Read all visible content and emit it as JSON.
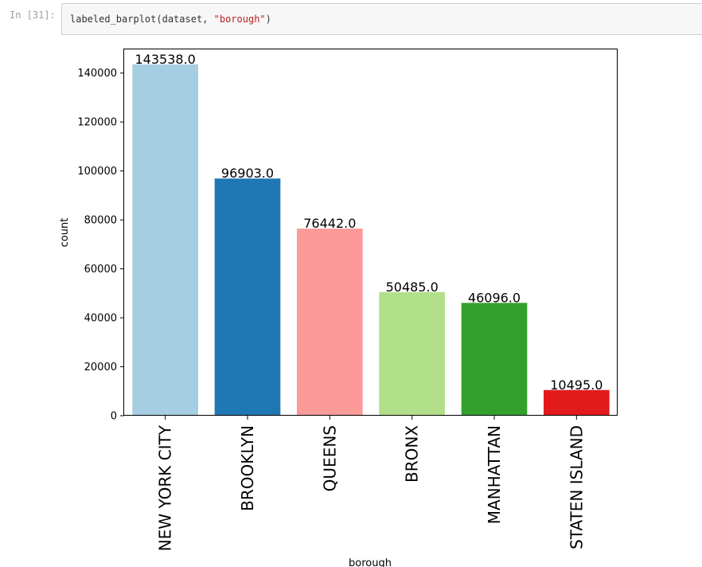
{
  "cell": {
    "prompt": "In [31]:",
    "code_func": "labeled_barplot",
    "code_args_prefix": "(dataset, ",
    "code_string": "\"borough\"",
    "code_close": ")"
  },
  "chart_data": {
    "type": "bar",
    "categories": [
      "NEW YORK CITY",
      "BROOKLYN",
      "QUEENS",
      "BRONX",
      "MANHATTAN",
      "STATEN ISLAND"
    ],
    "values": [
      143538.0,
      96903.0,
      76442.0,
      50485.0,
      46096.0,
      10495.0
    ],
    "data_labels": [
      "143538.0",
      "96903.0",
      "76442.0",
      "50485.0",
      "46096.0",
      "10495.0"
    ],
    "colors": [
      "#a6cee3",
      "#1f78b4",
      "#fb9a99",
      "#b2df8a",
      "#33a02c",
      "#e31a1c"
    ],
    "xlabel": "borough",
    "ylabel": "count",
    "ylim": [
      0,
      150000
    ],
    "yticks": [
      0,
      20000,
      40000,
      60000,
      80000,
      100000,
      120000,
      140000
    ],
    "grid": false,
    "legend": "none"
  }
}
